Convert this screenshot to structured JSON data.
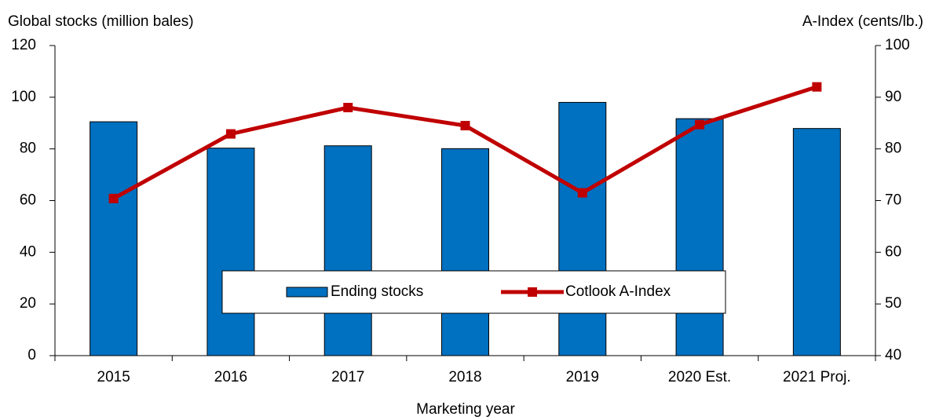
{
  "chart_data": {
    "type": "bar-line",
    "y_label": "Global stocks (million bales)",
    "y2_label": "A-Index (cents/lb.)",
    "x_label": "Marketing year",
    "categories": [
      "2015",
      "2016",
      "2017",
      "2018",
      "2019",
      "2020 Est.",
      "2021 Proj."
    ],
    "series": [
      {
        "name": "Ending stocks",
        "type": "bar",
        "color": "#0070c0",
        "axis": "y",
        "values": [
          90.5,
          80.3,
          81.2,
          80.1,
          98.0,
          91.7,
          87.9
        ]
      },
      {
        "name": "Cotlook A-Index",
        "type": "line",
        "color": "#c00000",
        "axis": "y2",
        "values": [
          70.4,
          82.9,
          88.0,
          84.5,
          71.5,
          84.7,
          92.0
        ]
      }
    ],
    "ylim": [
      0,
      120
    ],
    "yticks": [
      0,
      20,
      40,
      60,
      80,
      100,
      120
    ],
    "y2lim": [
      40,
      100
    ],
    "y2ticks": [
      40,
      50,
      60,
      70,
      80,
      90,
      100
    ],
    "grid": false,
    "legend": "bottom-center"
  }
}
